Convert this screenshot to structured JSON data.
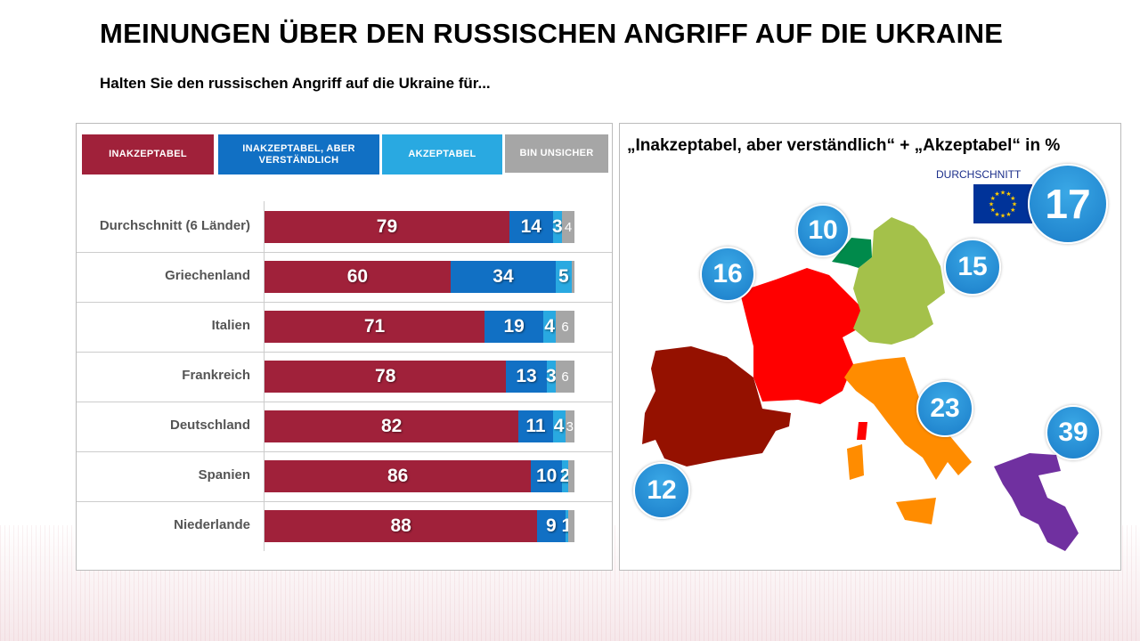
{
  "title": "MEINUNGEN ÜBER DEN RUSSISCHEN ANGRIFF AUF DIE UKRAINE",
  "subtitle": "Halten Sie den russischen Angriff auf die Ukraine für...",
  "chart_data": [
    {
      "type": "bar",
      "orientation": "horizontal",
      "stacked": true,
      "xlim": [
        0,
        100
      ],
      "legend_position": "top",
      "categories": [
        "Durchschnitt (6 Länder)",
        "Griechenland",
        "Italien",
        "Frankreich",
        "Deutschland",
        "Spanien",
        "Niederlande"
      ],
      "series": [
        {
          "name": "INAKZEPTABEL",
          "color": "#A0213A",
          "values": [
            79,
            60,
            71,
            78,
            82,
            86,
            88
          ],
          "labels": [
            "79",
            "60",
            "71",
            "78",
            "82",
            "86",
            "88"
          ]
        },
        {
          "name": "INAKZEPTABEL, ABER VERSTÄNDLICH",
          "color": "#1170C4",
          "values": [
            14,
            34,
            19,
            13,
            11,
            10,
            9
          ],
          "labels": [
            "14",
            "34",
            "19",
            "13",
            "11",
            "10",
            "9"
          ]
        },
        {
          "name": "AKZEPTABEL",
          "color": "#29A9E1",
          "values": [
            3,
            5,
            4,
            3,
            4,
            2,
            1
          ],
          "labels": [
            "3",
            "5",
            "4",
            "3",
            "4",
            "2",
            "1"
          ]
        },
        {
          "name": "BIN UNSICHER",
          "color": "#A6A6A6",
          "values": [
            4,
            1,
            6,
            6,
            3,
            2,
            2
          ],
          "labels": [
            "4",
            "",
            "6",
            "6",
            "3",
            "",
            ""
          ]
        }
      ]
    },
    {
      "type": "map",
      "title": "„Inakzeptabel, aber verständlich“ + „Akzeptabel“ in %",
      "average_label": "DURCHSCHNITT",
      "average_value": "17",
      "countries": [
        {
          "name": "Niederlande",
          "value": "10",
          "color": "#008A4B"
        },
        {
          "name": "Frankreich",
          "value": "16",
          "color": "#FF0000"
        },
        {
          "name": "Deutschland",
          "value": "15",
          "color": "#A4C14A"
        },
        {
          "name": "Italien",
          "value": "23",
          "color": "#FF8C00"
        },
        {
          "name": "Griechenland",
          "value": "39",
          "color": "#7030A0"
        },
        {
          "name": "Spanien",
          "value": "12",
          "color": "#951100"
        }
      ]
    }
  ]
}
